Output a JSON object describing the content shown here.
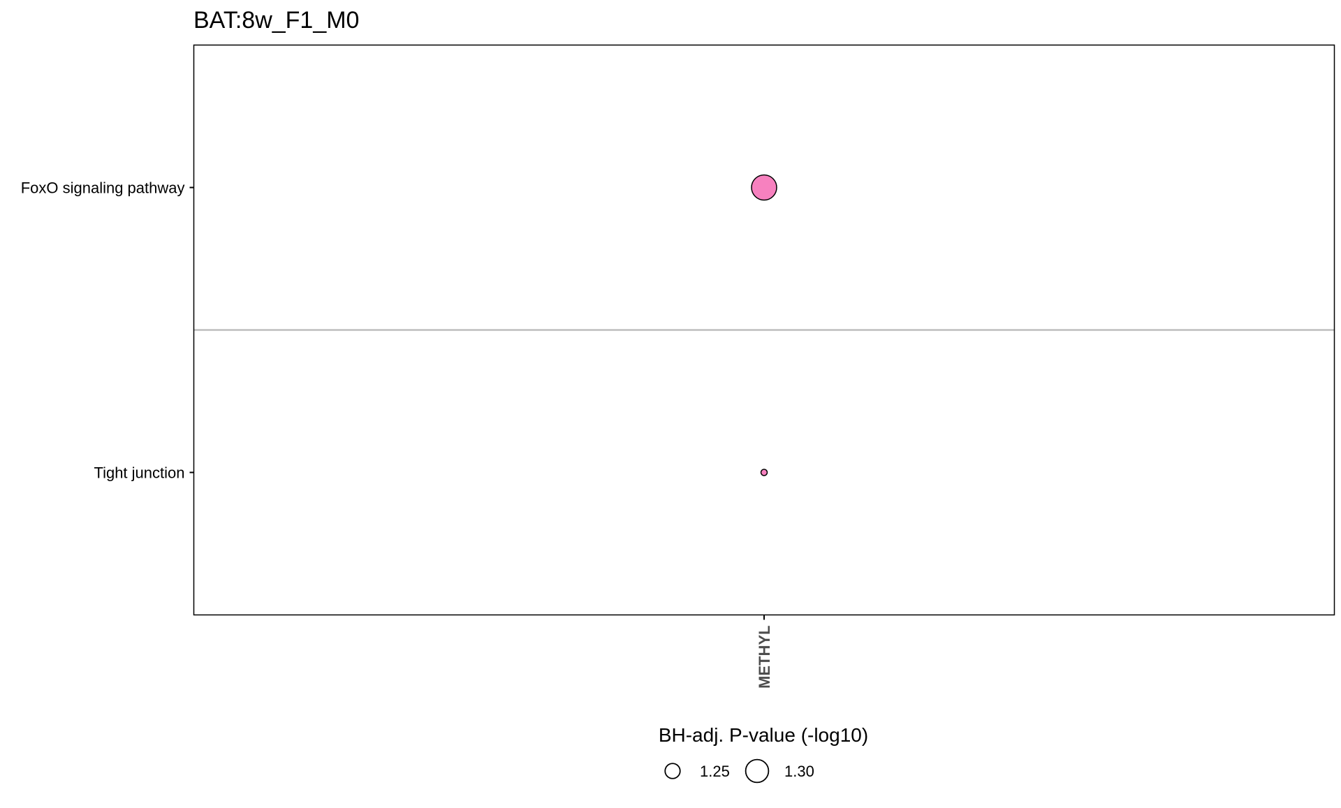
{
  "chart_data": {
    "type": "scatter",
    "title": "BAT:8w_F1_M0",
    "xlabel": "",
    "ylabel": "",
    "x_categories": [
      "METHYL"
    ],
    "y_categories": [
      "FoxO signaling pathway",
      "Tight junction"
    ],
    "points": [
      {
        "x": "METHYL",
        "y": "FoxO signaling pathway",
        "size_value": 1.31,
        "color": "#F781BF"
      },
      {
        "x": "METHYL",
        "y": "Tight junction",
        "size_value": 1.22,
        "color": "#F781BF"
      }
    ],
    "legend": {
      "title": "BH-adj. P-value (-log10)",
      "placement": "bottom",
      "entries": [
        {
          "label": "1.25",
          "value": 1.25
        },
        {
          "label": "1.30",
          "value": 1.3
        }
      ]
    },
    "grid": "horizontal separator between categories",
    "colors": {
      "point_fill": "#F781BF",
      "separator": "#BEBEBE",
      "frame": "#000000"
    }
  }
}
